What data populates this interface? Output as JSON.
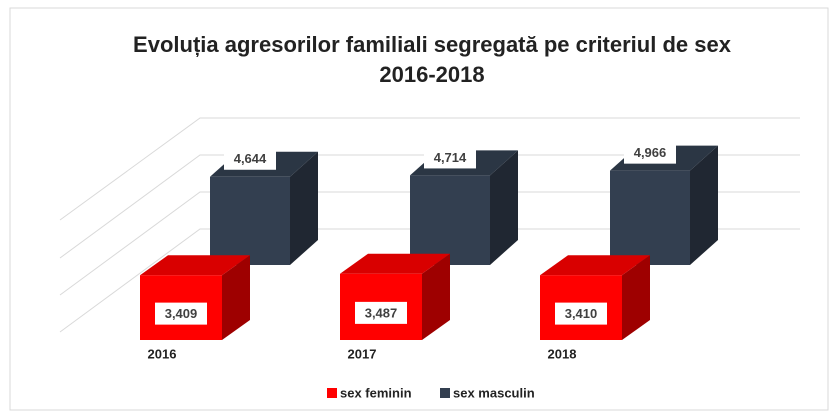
{
  "chart_data": {
    "type": "bar3d",
    "title": [
      "Evoluția agresorilor familiali segregată pe criteriul de sex",
      "2016-2018"
    ],
    "categories": [
      "2016",
      "2017",
      "2018"
    ],
    "series": [
      {
        "name": "sex feminin",
        "color": "#ff0000",
        "values": [
          3409,
          3487,
          3410
        ],
        "value_labels": [
          "3,409",
          "3,487",
          "3,410"
        ]
      },
      {
        "name": "sex masculin",
        "color": "#333f50",
        "values": [
          4644,
          4714,
          4966
        ],
        "value_labels": [
          "4,644",
          "4,714",
          "4,966"
        ]
      }
    ],
    "ylim": [
      0,
      5000
    ],
    "legend": "bottom"
  }
}
